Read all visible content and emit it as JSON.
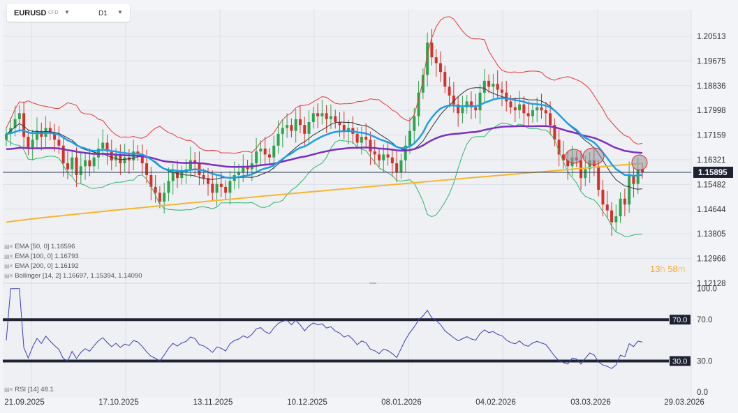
{
  "header": {
    "symbol": "EURUSD",
    "instrument_type": "CFD",
    "timeframe": "D1"
  },
  "legend": [
    {
      "label": "EMA",
      "params": "[50, 0]",
      "value": "1.16596",
      "color": "#1e9ee8"
    },
    {
      "label": "EMA",
      "params": "[100, 0]",
      "value": "1.16793",
      "color": "#7b2fbf"
    },
    {
      "label": "EMA",
      "params": "[200, 0]",
      "value": "1.16192",
      "color": "#f5b731"
    },
    {
      "label": "Bollinger",
      "params": "[14, 2]",
      "value": "1.16697,  1.15394,  1.14090",
      "color": "#e53935"
    }
  ],
  "countdown": {
    "hours": "13",
    "h_unit": "h",
    "minutes": "58",
    "m_unit": "m"
  },
  "rsi": {
    "label": "RSI",
    "params": "[14]",
    "value": "48.1"
  },
  "chart_data": {
    "type": "candlestick",
    "instrument": "EURUSD",
    "timeframe": "D1",
    "price_axis": {
      "ticks": [
        "1.20513",
        "1.19675",
        "1.18836",
        "1.17998",
        "1.17159",
        "1.16321",
        "1.15482",
        "1.14644",
        "1.13805",
        "1.12966",
        "1.12128"
      ]
    },
    "current_price": "1.15895",
    "x_axis": {
      "labels": [
        "21.09.2025",
        "17.10.2025",
        "13.11.2025",
        "10.12.2025",
        "08.01.2026",
        "04.02.2026",
        "03.03.2026",
        "29.03.2026"
      ]
    },
    "close": [
      1.172,
      1.174,
      1.177,
      1.179,
      1.171,
      1.167,
      1.17,
      1.173,
      1.171,
      1.174,
      1.172,
      1.17,
      1.168,
      1.162,
      1.16,
      1.164,
      1.158,
      1.161,
      1.163,
      1.161,
      1.164,
      1.167,
      1.169,
      1.166,
      1.163,
      1.165,
      1.162,
      1.164,
      1.163,
      1.166,
      1.165,
      1.162,
      1.158,
      1.154,
      1.152,
      1.149,
      1.152,
      1.156,
      1.159,
      1.157,
      1.159,
      1.16,
      1.163,
      1.162,
      1.158,
      1.157,
      1.155,
      1.152,
      1.155,
      1.154,
      1.152,
      1.156,
      1.158,
      1.159,
      1.161,
      1.16,
      1.162,
      1.166,
      1.167,
      1.165,
      1.164,
      1.168,
      1.172,
      1.174,
      1.175,
      1.173,
      1.177,
      1.175,
      1.172,
      1.176,
      1.179,
      1.178,
      1.179,
      1.177,
      1.178,
      1.176,
      1.175,
      1.173,
      1.174,
      1.172,
      1.169,
      1.171,
      1.17,
      1.166,
      1.165,
      1.163,
      1.165,
      1.164,
      1.162,
      1.159,
      1.163,
      1.168,
      1.173,
      1.178,
      1.186,
      1.192,
      1.203,
      1.198,
      1.196,
      1.193,
      1.188,
      1.185,
      1.182,
      1.179,
      1.181,
      1.183,
      1.181,
      1.18,
      1.186,
      1.19,
      1.188,
      1.189,
      1.187,
      1.186,
      1.183,
      1.181,
      1.18,
      1.182,
      1.179,
      1.178,
      1.18,
      1.181,
      1.18,
      1.179,
      1.175,
      1.17,
      1.165,
      1.163,
      1.161,
      1.164,
      1.163,
      1.157,
      1.16,
      1.163,
      1.161,
      1.153,
      1.148,
      1.146,
      1.142,
      1.144,
      1.15,
      1.148,
      1.158,
      1.155,
      1.16,
      1.159
    ],
    "ema50_end": "1.16596",
    "ema100_end": "1.16793",
    "ema200_end": "1.16192",
    "bollinger_end": {
      "upper": "1.16697",
      "middle": "1.15394",
      "lower": "1.14090"
    },
    "rsi_panel": {
      "ticks": [
        "100.0",
        "70.0",
        "30.0",
        "0.0"
      ],
      "levels": [
        "70.0",
        "30.0"
      ],
      "ylim": [
        0,
        100
      ]
    }
  }
}
